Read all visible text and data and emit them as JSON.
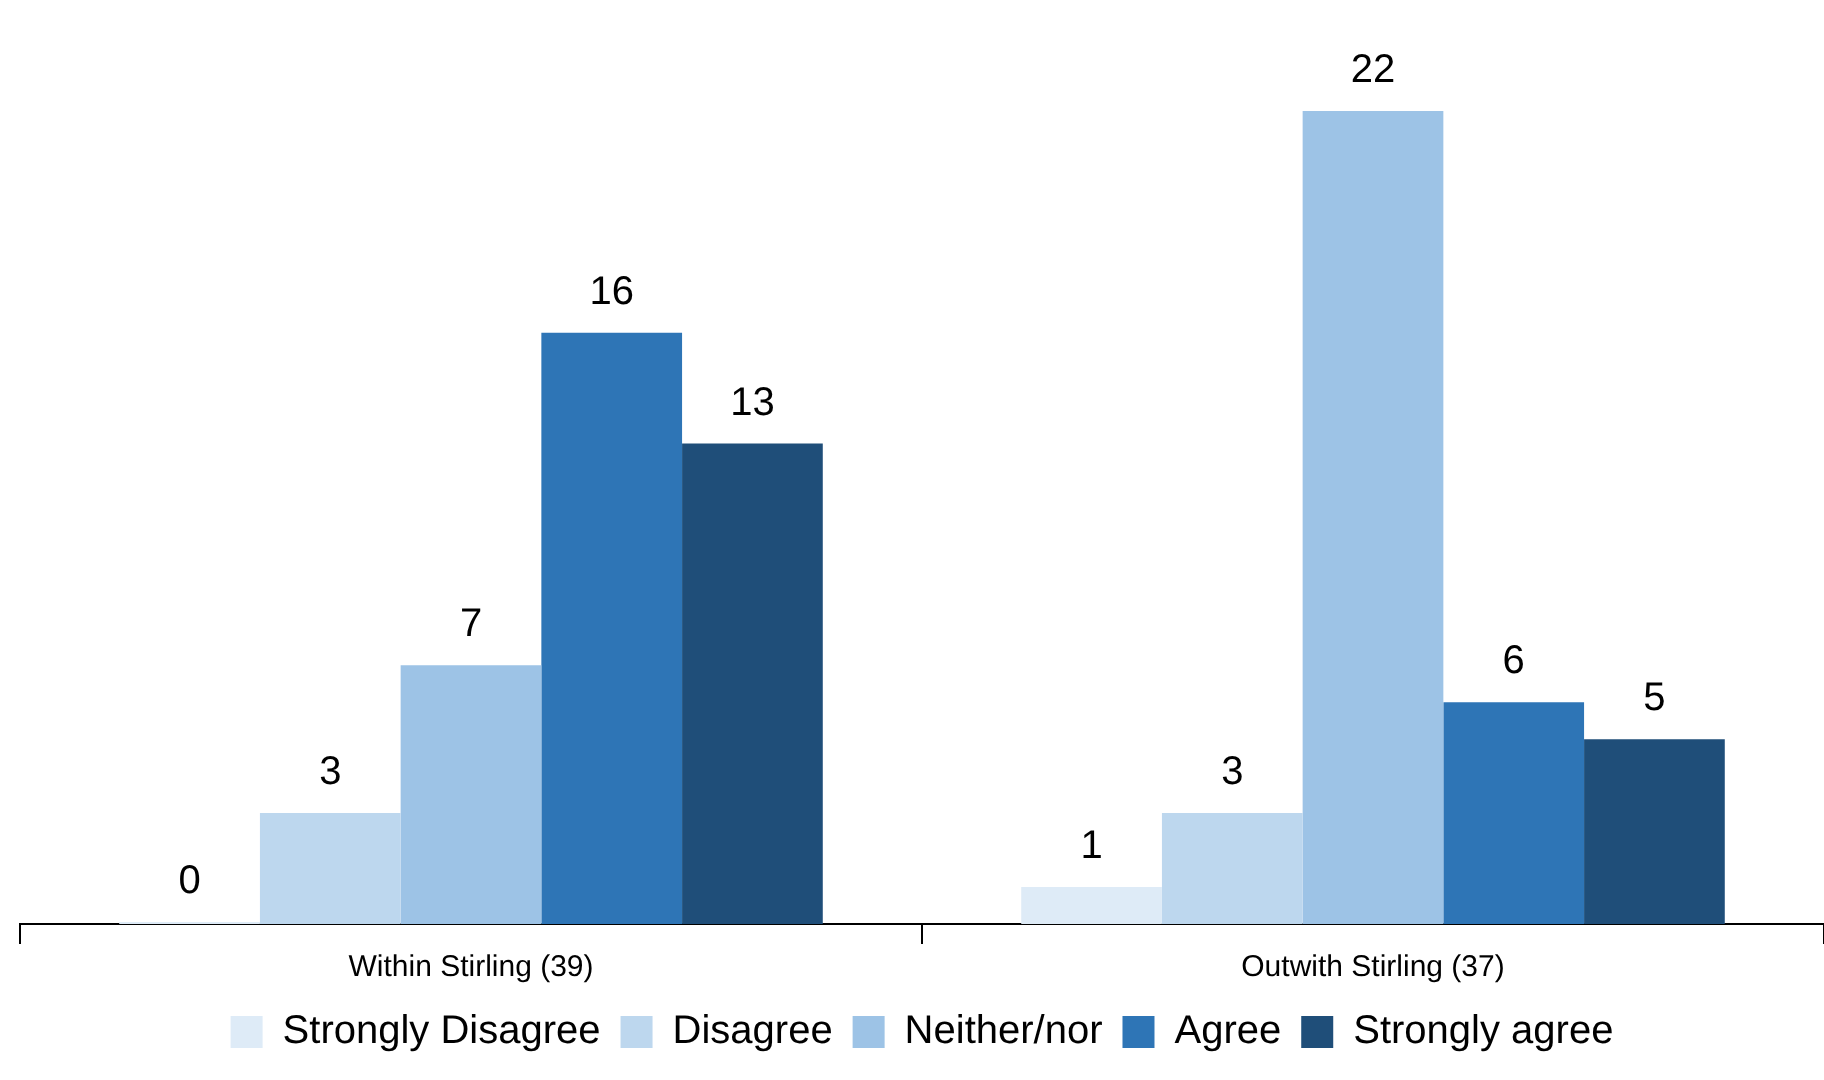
{
  "chart_data": {
    "type": "bar",
    "categories": [
      "Within Stirling (39)",
      "Outwith Stirling (37)"
    ],
    "series": [
      {
        "name": "Strongly Disagree",
        "color": "#deebf7",
        "values": [
          0,
          1
        ]
      },
      {
        "name": "Disagree",
        "color": "#bdd7ee",
        "values": [
          3,
          3
        ]
      },
      {
        "name": "Neither/nor",
        "color": "#9dc3e6",
        "values": [
          7,
          22
        ]
      },
      {
        "name": "Agree",
        "color": "#2e75b6",
        "values": [
          16,
          6
        ]
      },
      {
        "name": "Strongly agree",
        "color": "#1f4e79",
        "values": [
          13,
          5
        ]
      }
    ],
    "data_labels": true,
    "legend": "bottom",
    "grid": false
  }
}
